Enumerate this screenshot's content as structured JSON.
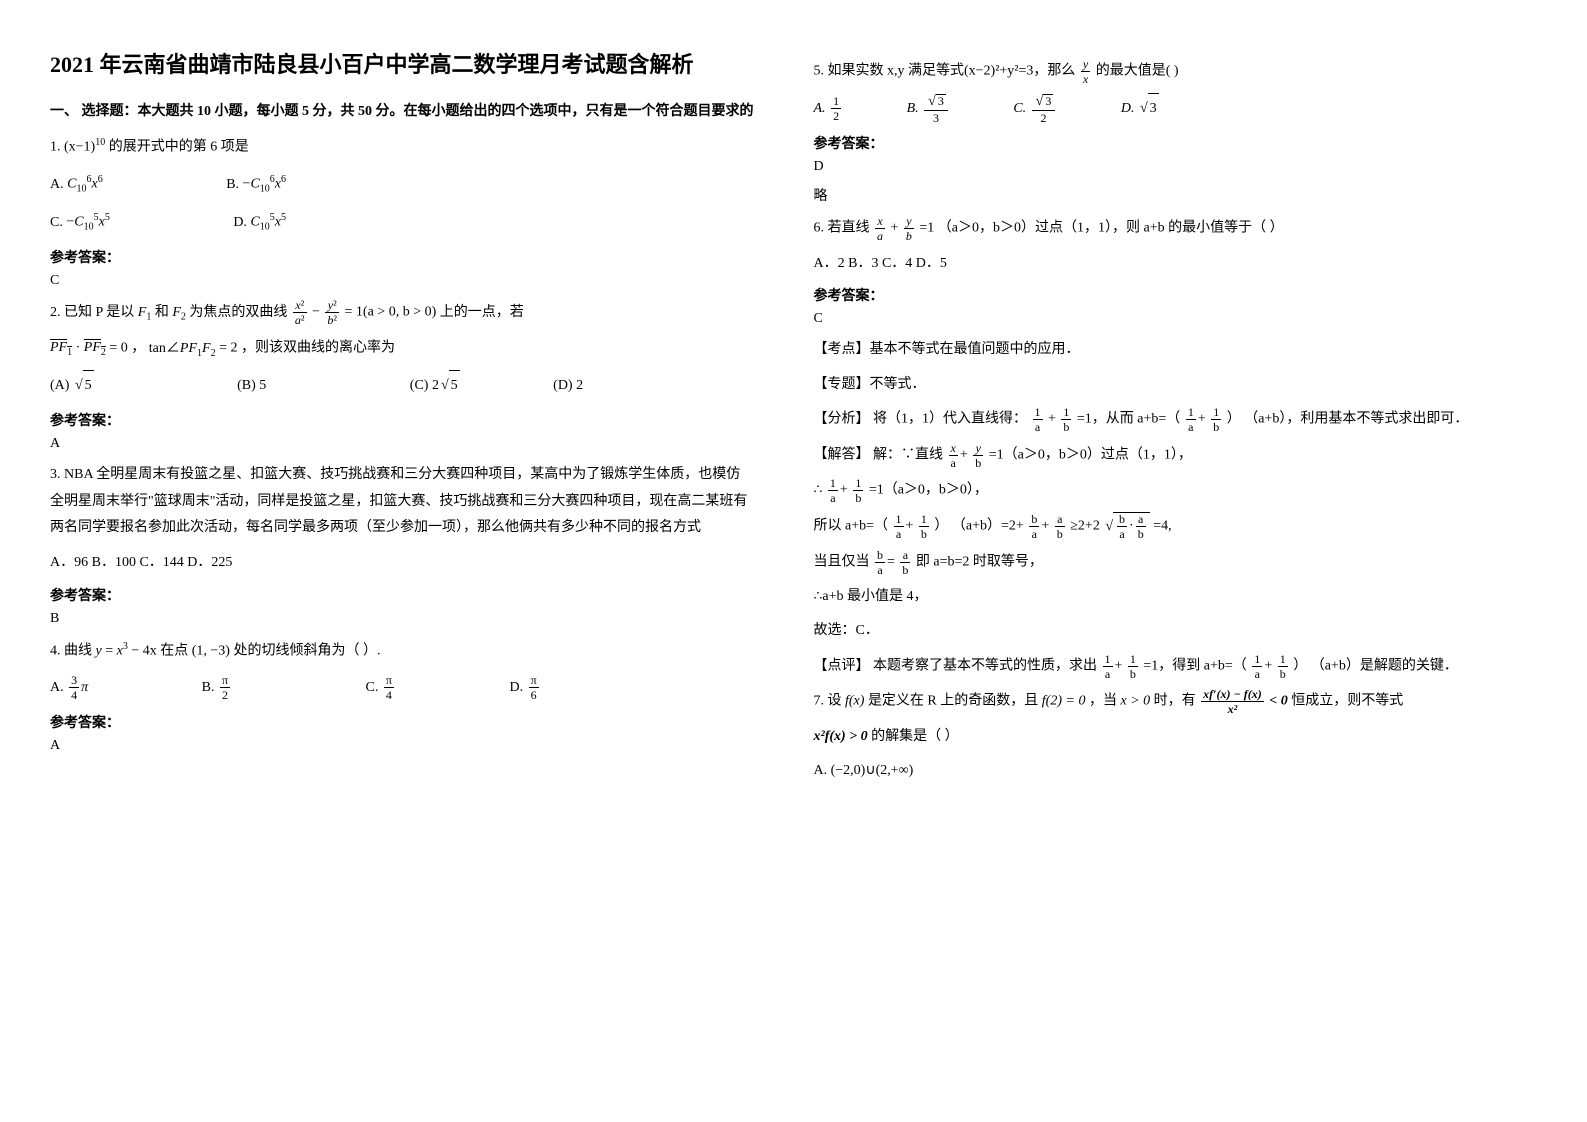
{
  "title": "2021 年云南省曲靖市陆良县小百户中学高二数学理月考试题含解析",
  "section1_head": "一、 选择题：本大题共 10 小题，每小题 5 分，共 50 分。在每小题给出的四个选项中，只有是一个符合题目要求的",
  "q1": {
    "stem_prefix": "1. ",
    "stem_suffix": " 的展开式中的第 6 项是",
    "base": "(x−1)",
    "exponent": "10",
    "labels": {
      "A": "A.",
      "B": "B.",
      "C": "C.",
      "D": "D."
    },
    "A_neg": "−",
    "C_sym": "C",
    "C10": "10",
    "C6": "6",
    "C5": "5",
    "x": "x"
  },
  "ans_label": "参考答案：",
  "q1_ans": "C",
  "q2": {
    "stem_a": "2. 已知 P 是以",
    "F1": "F",
    "F1s": "1",
    "and": "和",
    "F2": "F",
    "F2s": "2",
    "stem_b": "为焦点的双曲线",
    "eq_suffix": "= 1(a > 0, b > 0)",
    "stem_c": "上的一点，若",
    "PF1": "PF",
    "PF2": "PF",
    "dot0": " · ",
    "zero": "= 0",
    "comma": "，",
    "tan": "tan∠PF",
    "tan_sub": "1",
    "F2s2": "F",
    "F2sub": "2",
    "eq2": " = 2",
    "stem_d": "，则该双曲线的离心率为",
    "optB": "5",
    "optD": "2",
    "labels": {
      "A": "(A)",
      "B": "(B) ",
      "C": "(C)",
      "D": "(D) "
    }
  },
  "q2_ans": "A",
  "q3": {
    "stem": "3. NBA 全明星周末有投篮之星、扣篮大赛、技巧挑战赛和三分大赛四种项目，某高中为了锻炼学生体质，也模仿全明星周末举行\"篮球周末\"活动，同样是投篮之星，扣篮大赛、技巧挑战赛和三分大赛四种项目，现在高二某班有两名同学要报名参加此次活动，每名同学最多两项（至少参加一项），那么他俩共有多少种不同的报名方式",
    "opts": "A．96    B．100    C．144    D．225"
  },
  "q3_ans": "B",
  "q4": {
    "stem_a": "4. 曲线",
    "y": "y = x",
    "exp3": "3",
    "minus": " − 4x",
    "stem_b": " 在点",
    "pt": "(1, −3)",
    "stem_c": " 处的切线倾斜角为（          ）.",
    "labels": {
      "A": "A.",
      "B": "B.",
      "C": "C.",
      "D": "D."
    },
    "pi": "π"
  },
  "q4_ans": "A",
  "q5": {
    "stem_a": "5. 如果实数 x,y 满足等式(x−2)²+y²=3，那么 ",
    "stem_b": " 的最大值是(    )",
    "y": "y",
    "x": "x",
    "labels": {
      "A": "A.",
      "B": "B.",
      "C": "C.",
      "D": "D."
    },
    "optD": "√3",
    "num1": "1",
    "num3": "3",
    "sqrt3": "3",
    "num2": "2"
  },
  "q5_ans": "D",
  "q5_lue": "略",
  "q6": {
    "stem_a": "6. 若直线 ",
    "x": "x",
    "a": "a",
    "plus": "+",
    "y": "y",
    "b": "b",
    "stem_b": "=1 （a＞0，b＞0）过点（1，1），则 a+b 的最小值等于（        ）",
    "opts": "A．2    B．3    C．4    D．5"
  },
  "q6_ans": "C",
  "q6_kd_label": "考点",
  "q6_kd": "基本不等式在最值问题中的应用．",
  "q6_zt_label": "专题",
  "q6_zt": "不等式．",
  "q6_fx_label": "分析",
  "q6_fx_a": "将（1，1）代入直线得：",
  "q6_fx_b": "=1，从而 a+b=（",
  "q6_fx_c": "） （a+b），利用基本不等式求出即可．",
  "q6_jd_label": "解答",
  "q6_jd_a": "解：∵直线",
  "q6_jd_b": "=1（a＞0，b＞0）过点（1，1），",
  "q6_ln1_a": "∴",
  "q6_ln1_b": "=1（a＞0，b＞0），",
  "q6_ln2_a": "所以 a+b=（",
  "q6_ln2_b": "） （a+b）=2+",
  "q6_ln2_c": "≥2+2",
  "q6_ln2_d": "=4,",
  "q6_ln3_a": "当且仅当",
  "q6_ln3_b": "即 a=b=2 时取等号，",
  "q6_ln4": "∴a+b 最小值是 4，",
  "q6_ln5": "故选：C．",
  "q6_dp_label": "点评",
  "q6_dp_a": "本题考察了基本不等式的性质，求出",
  "q6_dp_b": "=1，得到 a+b=（",
  "q6_dp_c": "） （a+b）是解题的关键．",
  "one": "1",
  "q7": {
    "stem_a": "7. 设",
    "fx": "f(x)",
    "stem_b": " 是定义在 R 上的奇函数，且",
    "f2": "f(2) = 0",
    "stem_c": "，当",
    "xgt": "x > 0",
    "stem_d": " 时，有",
    "ineq_num": "xf′(x) − f(x)",
    "ineq_den": "x²",
    "lt0": " < 0",
    "stem_e": "    恒成立，则不等式",
    "x2fx": "x²f(x) > 0",
    "stem_f": " 的解集是（   ）",
    "optA": "A. (−2,0)∪(2,+∞)"
  }
}
